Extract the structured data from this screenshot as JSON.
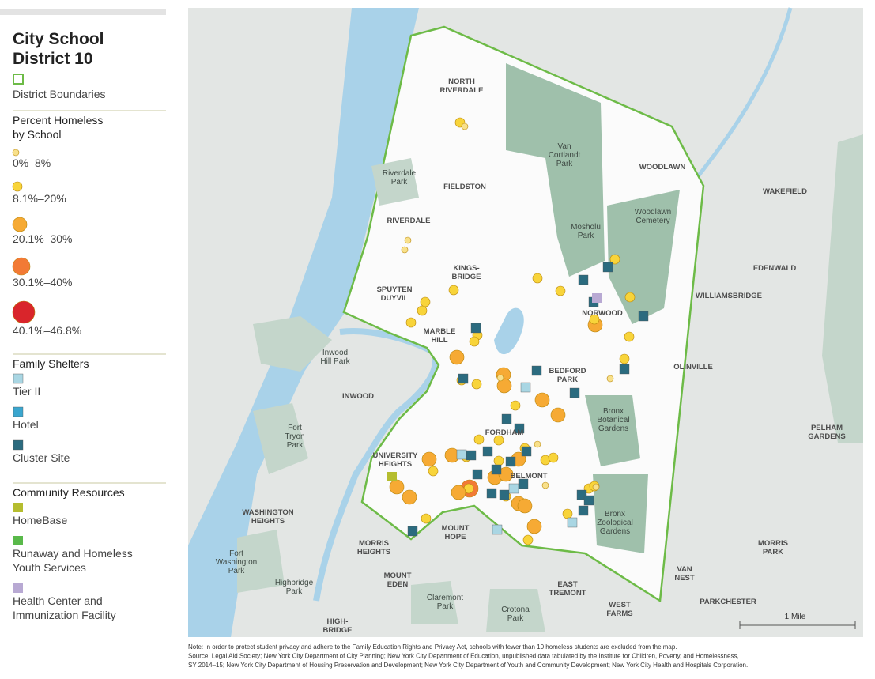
{
  "legend": {
    "title": [
      "City School",
      "District 10"
    ],
    "boundary": "District Boundaries",
    "sections": [
      {
        "heading": [
          "Percent Homeless",
          "by School"
        ],
        "items": [
          [
            "0%–8%"
          ],
          [
            "8.1%–20%"
          ],
          [
            "20.1%–30%"
          ],
          [
            "30.1%–40%"
          ],
          [
            "40.1%–46.8%"
          ]
        ]
      },
      {
        "heading": [
          "Family Shelters"
        ],
        "items": [
          [
            "Tier II"
          ],
          [
            "Hotel"
          ],
          [
            "Cluster Site"
          ]
        ]
      },
      {
        "heading": [
          "Community Resources"
        ],
        "items": [
          [
            "HomeBase"
          ],
          [
            "Runaway and Homeless",
            "Youth Services"
          ],
          [
            "Health Center and",
            "Immunization Facility"
          ]
        ]
      }
    ]
  },
  "map": {
    "labels": [
      [
        "NORTH",
        "RIVERDALE"
      ],
      [
        "Van",
        "Cortlandt",
        "Park"
      ],
      [
        "WOODLAWN"
      ],
      [
        "Riverdale",
        "Park"
      ],
      [
        "FIELDSTON"
      ],
      [
        "WAKEFIELD"
      ],
      [
        "Woodlawn",
        "Cemetery"
      ],
      [
        "RIVERDALE"
      ],
      [
        "Mosholu",
        "Park"
      ],
      [
        "KINGS-",
        "BRIDGE"
      ],
      [
        "EDENWALD"
      ],
      [
        "SPUYTEN",
        "DUYVIL"
      ],
      [
        "WILLIAMSBRIDGE"
      ],
      [
        "NORWOOD"
      ],
      [
        "MARBLE",
        "HILL"
      ],
      [
        "Inwood",
        "Hill Park"
      ],
      [
        "OLINVILLE"
      ],
      [
        "BEDFORD",
        "PARK"
      ],
      [
        "INWOOD"
      ],
      [
        "Bronx",
        "Botanical",
        "Gardens"
      ],
      [
        "FORDHAM"
      ],
      [
        "Fort",
        "Tryon",
        "Park"
      ],
      [
        "PELHAM",
        "GARDENS"
      ],
      [
        "UNIVERSITY",
        "HEIGHTS"
      ],
      [
        "BELMONT"
      ],
      [
        "WASHINGTON",
        "HEIGHTS"
      ],
      [
        "Bronx",
        "Zoological",
        "Gardens"
      ],
      [
        "MOUNT",
        "HOPE"
      ],
      [
        "MORRIS",
        "HEIGHTS"
      ],
      [
        "MORRIS",
        "PARK"
      ],
      [
        "Fort",
        "Washington",
        "Park"
      ],
      [
        "MOUNT",
        "EDEN"
      ],
      [
        "VAN",
        "NEST"
      ],
      [
        "Highbridge",
        "Park"
      ],
      [
        "Claremont",
        "Park"
      ],
      [
        "EAST",
        "TREMONT"
      ],
      [
        "PARKCHESTER"
      ],
      [
        "Crotona",
        "Park"
      ],
      [
        "WEST",
        "FARMS"
      ],
      [
        "HIGH-",
        "BRIDGE"
      ]
    ],
    "scale": "1 Mile"
  },
  "notes": [
    "Note: In order to protect student privacy and adhere to the Family Education Rights and Privacy Act, schools with fewer than 10 homeless students are excluded from the map.",
    "Source: Legal Aid Society; New York City Department of City Planning; New York City Department of Education, unpublished data tabulated by the Institute for Children, Poverty, and Homelessness,",
    "SY 2014–15; New York City Department of Housing Preservation and Development; New York City Department of Youth and Community Development; New York City Health and Hospitals Corporation."
  ]
}
